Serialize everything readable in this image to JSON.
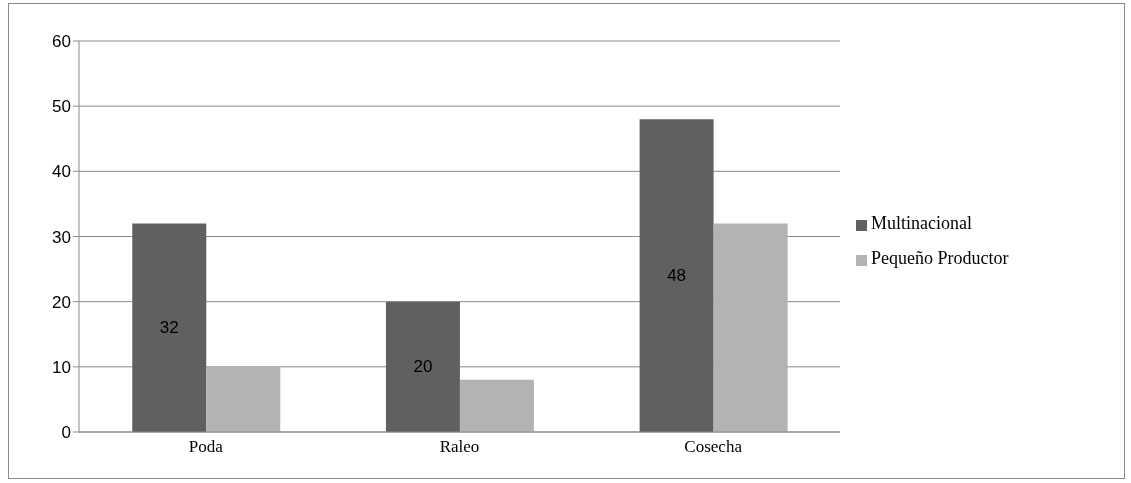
{
  "chart_data": {
    "type": "bar",
    "categories": [
      "Poda",
      "Raleo",
      "Cosecha"
    ],
    "series": [
      {
        "name": "Multinacional",
        "color": "#606060",
        "values": [
          32,
          20,
          48
        ],
        "value_labels": [
          "32",
          "20",
          "48"
        ]
      },
      {
        "name": "Pequeño Productor",
        "color": "#b3b3b3",
        "values": [
          10,
          8,
          32
        ]
      }
    ],
    "ylim": [
      0,
      60
    ],
    "yticks": [
      0,
      10,
      20,
      30,
      40,
      50,
      60
    ],
    "grid": "y",
    "legend": "right"
  }
}
